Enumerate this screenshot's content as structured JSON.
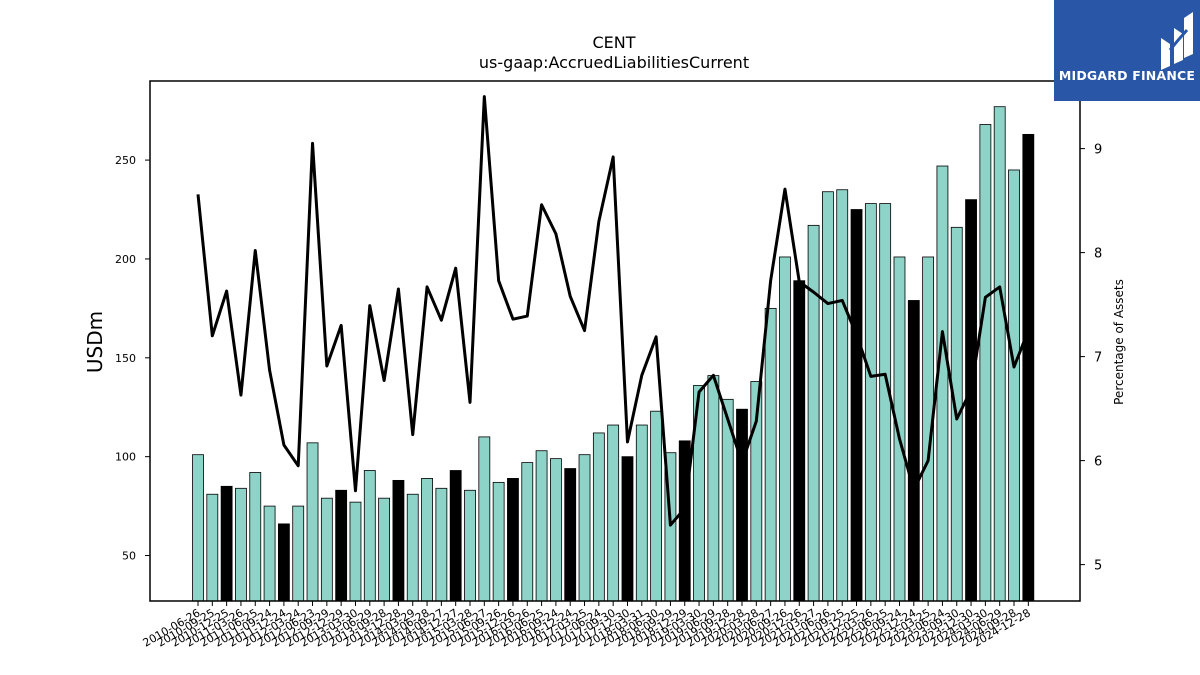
{
  "brand": {
    "name": "MIDGARD FINANCE",
    "background": "#2a56a8"
  },
  "chart_data": {
    "type": "bar",
    "title": "CENT",
    "subtitle": "us-gaap:AccruedLiabilitiesCurrent",
    "ylabel": "USDm",
    "y2label": "Percentage of Assets",
    "ylim": [
      27,
      290
    ],
    "y2lim": [
      4.65,
      9.65
    ],
    "yticks": [
      50,
      100,
      150,
      200,
      250
    ],
    "y2ticks": [
      5,
      6,
      7,
      8,
      9
    ],
    "bar_colors": {
      "quarter": "#8dd3c7",
      "fiscal_year_end": "#000000"
    },
    "line_color": "#000000",
    "categories": [
      "2010-06-26",
      "2010-09-25",
      "2010-12-25",
      "2011-03-26",
      "2011-06-25",
      "2011-09-24",
      "2011-12-24",
      "2012-03-24",
      "2012-06-23",
      "2012-09-29",
      "2012-12-29",
      "2013-03-30",
      "2013-06-29",
      "2013-09-28",
      "2013-12-28",
      "2014-03-29",
      "2014-06-28",
      "2014-09-27",
      "2014-12-27",
      "2015-03-28",
      "2015-06-27",
      "2015-09-26",
      "2015-12-26",
      "2016-03-26",
      "2016-06-25",
      "2016-09-24",
      "2016-12-24",
      "2017-03-25",
      "2017-06-24",
      "2017-09-30",
      "2017-12-30",
      "2018-03-31",
      "2018-06-30",
      "2018-09-29",
      "2018-12-29",
      "2019-03-30",
      "2019-06-29",
      "2019-09-28",
      "2019-12-28",
      "2020-03-28",
      "2020-06-27",
      "2020-09-26",
      "2020-12-26",
      "2021-03-27",
      "2021-06-26",
      "2021-09-25",
      "2021-12-25",
      "2022-03-26",
      "2022-06-25",
      "2022-09-24",
      "2022-12-24",
      "2023-03-25",
      "2023-06-24",
      "2023-09-30",
      "2023-12-30",
      "2024-03-30",
      "2024-06-29",
      "2024-09-28",
      "2024-12-28"
    ],
    "values": [
      101,
      81,
      85,
      84,
      92,
      75,
      66,
      75,
      107,
      79,
      83,
      77,
      93,
      79,
      88,
      81,
      89,
      84,
      93,
      83,
      110,
      87,
      89,
      97,
      103,
      99,
      94,
      101,
      112,
      116,
      100,
      116,
      123,
      102,
      108,
      136,
      141,
      129,
      124,
      138,
      175,
      201,
      189,
      217,
      234,
      235,
      225,
      228,
      228,
      201,
      179,
      201,
      247,
      216,
      230,
      268,
      277,
      245,
      263
    ],
    "highlight": [
      false,
      false,
      true,
      false,
      false,
      false,
      true,
      false,
      false,
      false,
      true,
      false,
      false,
      false,
      true,
      false,
      false,
      false,
      true,
      false,
      false,
      false,
      true,
      false,
      false,
      false,
      true,
      false,
      false,
      false,
      true,
      false,
      false,
      false,
      true,
      false,
      false,
      false,
      true,
      false,
      false,
      false,
      true,
      false,
      false,
      false,
      true,
      false,
      false,
      false,
      true,
      false,
      false,
      false,
      true,
      false,
      false,
      false,
      true
    ],
    "series": [
      {
        "values": [
          8.56,
          7.2,
          7.63,
          6.63,
          8.02,
          6.87,
          6.15,
          5.95,
          9.05,
          6.91,
          7.3,
          5.71,
          7.49,
          6.77,
          7.65,
          6.25,
          7.67,
          7.35,
          7.85,
          6.56,
          9.5,
          7.73,
          7.36,
          7.39,
          8.46,
          8.18,
          7.58,
          7.25,
          8.3,
          8.92,
          6.18,
          6.82,
          7.19,
          5.38,
          5.54,
          6.66,
          6.82,
          6.4,
          5.98,
          6.38,
          7.73,
          8.61,
          7.72,
          7.62,
          7.51,
          7.54,
          7.21,
          6.81,
          6.83,
          6.21,
          5.72,
          6.0,
          7.24,
          6.4,
          6.68,
          7.57,
          7.67,
          6.9,
          7.25
        ]
      }
    ]
  }
}
